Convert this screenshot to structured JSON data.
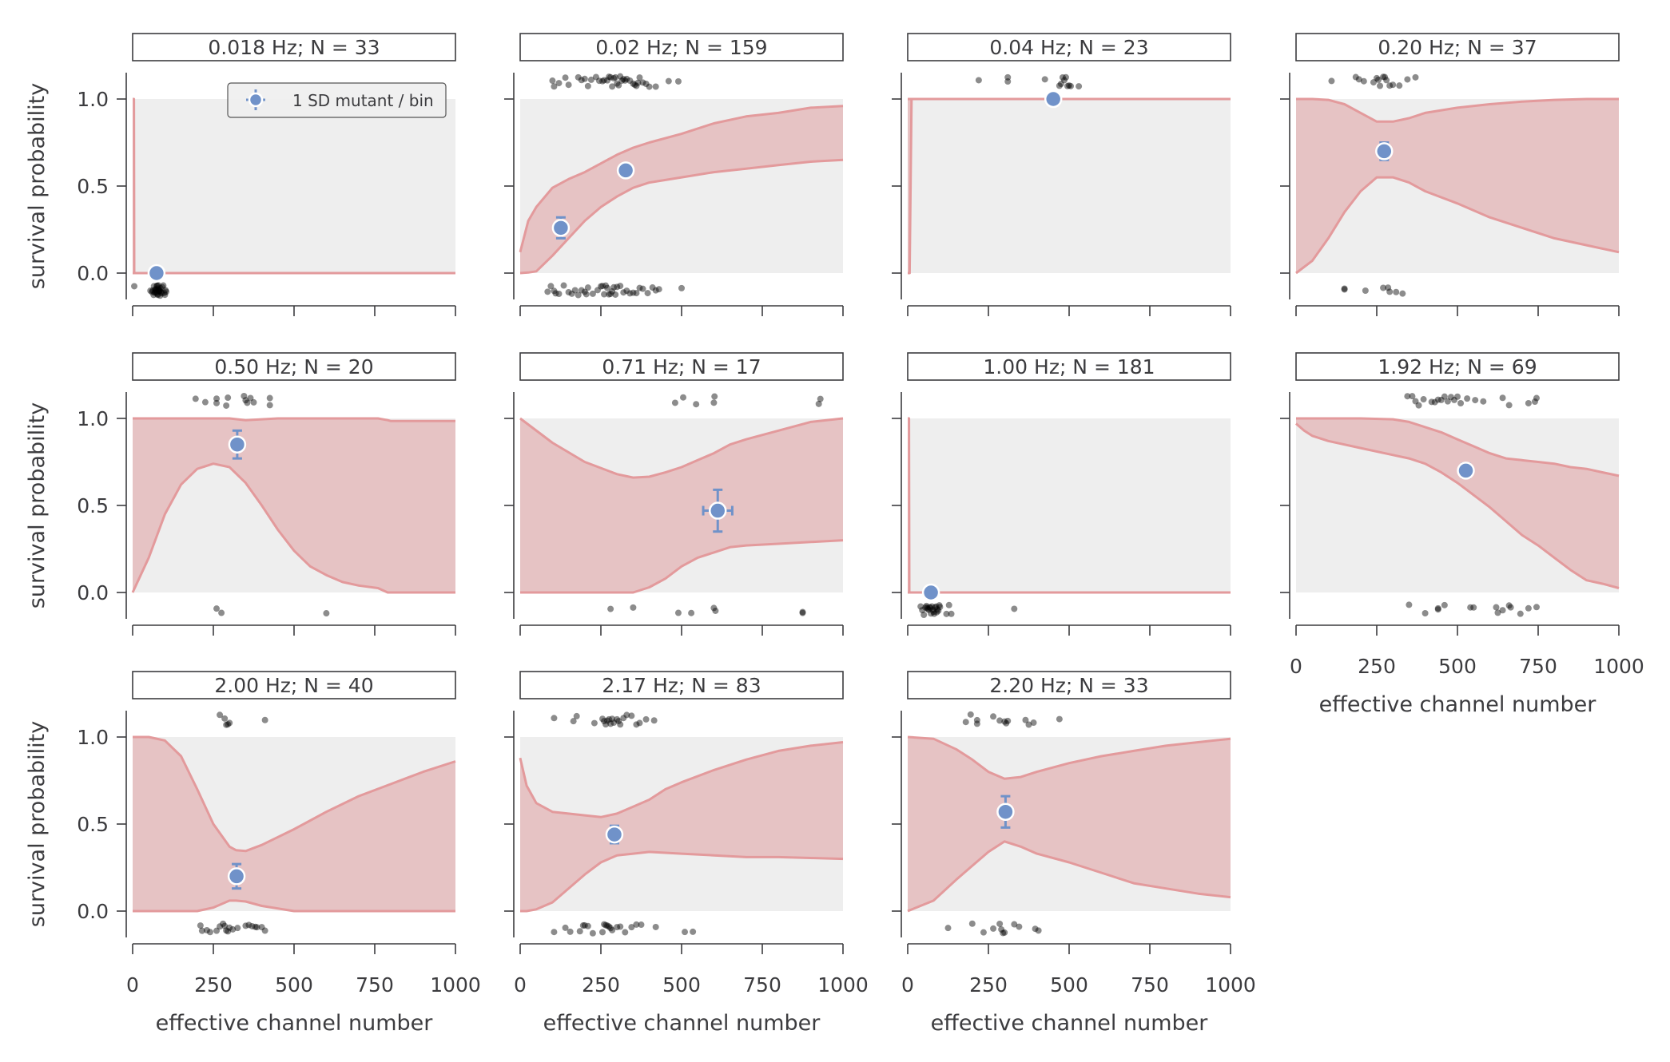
{
  "chart_data": {
    "type": "area",
    "description": "Small multiples: survival probability vs effective channel number, one panel per stimulation frequency. Shaded red band = model range; blue point = binned mutant mean with 1 SD error bars; black dots = individual observations (survived jittered above 1.0, died jittered below 0.0).",
    "xlabel": "effective channel number",
    "ylabel": "survival probability",
    "xlim": [
      0,
      1000
    ],
    "ylim": [
      -0.15,
      1.15
    ],
    "xticks": [
      0,
      250,
      500,
      750,
      1000
    ],
    "yticks": [
      0.0,
      0.5,
      1.0
    ],
    "xtick_labels": [
      "0",
      "250",
      "500",
      "750",
      "1000"
    ],
    "ytick_labels": [
      "0.0",
      "0.5",
      "1.0"
    ],
    "legend": {
      "label": "1 SD mutant / bin",
      "placement": "upper-right of first panel"
    },
    "colors": {
      "band_fill": "#e6c3c4",
      "band_line": "#e39a9c",
      "plot_bg": "#eeeeee",
      "point": "#7092c9",
      "observation": "#000000"
    },
    "panels": [
      {
        "title": "0.018 Hz; N = 33",
        "frequency_hz": 0.018,
        "n": 33,
        "band": {
          "x": [
            0,
            4,
            5,
            1000
          ],
          "upper": [
            1,
            1,
            0,
            0
          ],
          "lower": [
            0,
            0,
            0,
            0
          ]
        },
        "points": [
          {
            "x": 74,
            "y": 0.0,
            "y_err": 0,
            "x_err": 0
          }
        ],
        "survived_x": [],
        "died_x": [
          5,
          55,
          60,
          62,
          65,
          66,
          68,
          70,
          70,
          72,
          72,
          74,
          75,
          76,
          77,
          78,
          78,
          80,
          80,
          81,
          82,
          83,
          84,
          85,
          86,
          88,
          90,
          92,
          95,
          98,
          100,
          102,
          104
        ]
      },
      {
        "title": "0.02 Hz; N = 159",
        "frequency_hz": 0.02,
        "n": 159,
        "band": {
          "x": [
            0,
            25,
            50,
            100,
            150,
            200,
            250,
            300,
            350,
            400,
            500,
            600,
            700,
            800,
            900,
            1000
          ],
          "upper": [
            0.12,
            0.3,
            0.38,
            0.49,
            0.54,
            0.58,
            0.63,
            0.68,
            0.72,
            0.75,
            0.8,
            0.86,
            0.9,
            0.92,
            0.95,
            0.96
          ],
          "lower": [
            0.0,
            0.003,
            0.01,
            0.1,
            0.2,
            0.3,
            0.38,
            0.44,
            0.49,
            0.52,
            0.55,
            0.58,
            0.6,
            0.62,
            0.64,
            0.65
          ]
        },
        "points": [
          {
            "x": 126,
            "y": 0.26,
            "y_err": 0.06,
            "x_err": 0
          },
          {
            "x": 327,
            "y": 0.59,
            "y_err": 0.02,
            "x_err": 0
          }
        ],
        "survived_x": [
          100,
          105,
          120,
          140,
          150,
          180,
          190,
          200,
          210,
          220,
          235,
          245,
          255,
          260,
          270,
          275,
          280,
          285,
          290,
          295,
          300,
          305,
          310,
          315,
          320,
          325,
          330,
          340,
          350,
          355,
          360,
          365,
          370,
          380,
          390,
          400,
          420,
          460,
          490
        ],
        "died_x": [
          85,
          95,
          105,
          110,
          120,
          135,
          150,
          160,
          170,
          180,
          190,
          200,
          205,
          210,
          225,
          240,
          250,
          255,
          260,
          265,
          270,
          275,
          280,
          285,
          290,
          295,
          300,
          310,
          320,
          330,
          340,
          350,
          360,
          370,
          380,
          395,
          410,
          420,
          430,
          500
        ]
      },
      {
        "title": "0.04 Hz; N = 23",
        "frequency_hz": 0.04,
        "n": 23,
        "band": {
          "x": [
            0,
            6,
            12,
            1000
          ],
          "upper": [
            1,
            1,
            1,
            1
          ],
          "lower": [
            0,
            0,
            1,
            1
          ]
        },
        "points": [
          {
            "x": 451,
            "y": 1.0,
            "y_err": 0.005,
            "x_err": 0
          }
        ],
        "survived_x": [
          220,
          310,
          310,
          425,
          470,
          475,
          480,
          485,
          490,
          495,
          500,
          505,
          530
        ],
        "died_x": []
      },
      {
        "title": "0.20 Hz; N = 37",
        "frequency_hz": 0.2,
        "n": 37,
        "band": {
          "x": [
            0,
            50,
            100,
            150,
            200,
            250,
            300,
            350,
            400,
            500,
            600,
            700,
            800,
            900,
            1000
          ],
          "upper": [
            1.0,
            1.0,
            0.995,
            0.97,
            0.92,
            0.87,
            0.87,
            0.89,
            0.92,
            0.95,
            0.97,
            0.985,
            0.995,
            1.0,
            1.0
          ],
          "lower": [
            0.0,
            0.07,
            0.2,
            0.35,
            0.47,
            0.55,
            0.55,
            0.52,
            0.47,
            0.4,
            0.32,
            0.26,
            0.2,
            0.16,
            0.12
          ]
        },
        "points": [
          {
            "x": 273,
            "y": 0.7,
            "y_err": 0.05,
            "x_err": 0
          }
        ],
        "survived_x": [
          110,
          185,
          195,
          210,
          240,
          250,
          255,
          260,
          270,
          275,
          280,
          290,
          300,
          320,
          345,
          370
        ],
        "died_x": [
          150,
          150,
          215,
          270,
          285,
          290,
          310,
          330
        ]
      },
      {
        "title": "0.50 Hz; N = 20",
        "frequency_hz": 0.5,
        "n": 20,
        "band": {
          "x": [
            0,
            50,
            100,
            150,
            200,
            250,
            300,
            350,
            400,
            450,
            500,
            550,
            600,
            650,
            700,
            760,
            790,
            800,
            1000
          ],
          "upper": [
            1.0,
            1.0,
            1.0,
            1.0,
            1.0,
            1.0,
            1.0,
            0.99,
            0.995,
            1.0,
            1.0,
            1.0,
            1.0,
            1.0,
            1.0,
            1.0,
            0.99,
            0.985,
            0.985
          ],
          "lower": [
            0.0,
            0.2,
            0.45,
            0.62,
            0.71,
            0.74,
            0.72,
            0.63,
            0.5,
            0.36,
            0.24,
            0.15,
            0.1,
            0.06,
            0.04,
            0.025,
            0.0,
            0.0,
            0.0
          ]
        },
        "points": [
          {
            "x": 324,
            "y": 0.85,
            "y_err": 0.08,
            "x_err": 0
          }
        ],
        "survived_x": [
          195,
          225,
          260,
          260,
          290,
          295,
          345,
          350,
          355,
          365,
          375,
          425,
          425
        ],
        "died_x": [
          260,
          275,
          600
        ]
      },
      {
        "title": "0.71 Hz; N = 17",
        "frequency_hz": 0.71,
        "n": 17,
        "band": {
          "x": [
            0,
            100,
            200,
            300,
            350,
            400,
            450,
            500,
            550,
            600,
            650,
            700,
            800,
            900,
            1000
          ],
          "upper": [
            1.0,
            0.86,
            0.75,
            0.68,
            0.66,
            0.665,
            0.69,
            0.72,
            0.76,
            0.8,
            0.85,
            0.88,
            0.93,
            0.98,
            1.0
          ],
          "lower": [
            0.0,
            0.0,
            0.0,
            0.0,
            0.0,
            0.03,
            0.08,
            0.15,
            0.2,
            0.23,
            0.26,
            0.27,
            0.28,
            0.29,
            0.3
          ]
        },
        "points": [
          {
            "x": 612,
            "y": 0.47,
            "y_err": 0.12,
            "x_err": 45
          }
        ],
        "survived_x": [
          480,
          505,
          545,
          600,
          602,
          925,
          930
        ],
        "died_x": [
          280,
          350,
          490,
          530,
          600,
          605,
          875,
          875
        ]
      },
      {
        "title": "1.00 Hz; N = 181",
        "frequency_hz": 1.0,
        "n": 181,
        "band": {
          "x": [
            0,
            4,
            5,
            1000
          ],
          "upper": [
            1,
            1,
            0,
            0
          ],
          "lower": [
            0,
            0,
            0,
            0
          ]
        },
        "points": [
          {
            "x": 72,
            "y": 0.0,
            "y_err": 0,
            "x_err": 0
          }
        ],
        "survived_x": [],
        "died_x": [
          40,
          45,
          50,
          55,
          58,
          60,
          62,
          65,
          68,
          70,
          72,
          75,
          78,
          80,
          82,
          85,
          88,
          90,
          92,
          95,
          98,
          100,
          120,
          128,
          135,
          330
        ]
      },
      {
        "title": "1.92 Hz; N = 69",
        "frequency_hz": 1.92,
        "n": 69,
        "band": {
          "x": [
            0,
            25,
            50,
            100,
            200,
            300,
            350,
            400,
            450,
            500,
            550,
            600,
            650,
            700,
            750,
            800,
            850,
            900,
            950,
            1000
          ],
          "upper": [
            1.0,
            1.0,
            1.0,
            1.0,
            1.0,
            0.995,
            0.98,
            0.95,
            0.92,
            0.88,
            0.84,
            0.8,
            0.77,
            0.76,
            0.75,
            0.74,
            0.72,
            0.71,
            0.69,
            0.67
          ],
          "lower": [
            0.97,
            0.93,
            0.9,
            0.87,
            0.83,
            0.79,
            0.77,
            0.74,
            0.69,
            0.63,
            0.56,
            0.49,
            0.41,
            0.33,
            0.27,
            0.2,
            0.13,
            0.07,
            0.05,
            0.025
          ]
        },
        "points": [
          {
            "x": 526,
            "y": 0.7,
            "y_err": 0.04,
            "x_err": 0
          }
        ],
        "survived_x": [
          345,
          360,
          370,
          380,
          395,
          420,
          430,
          440,
          450,
          460,
          470,
          480,
          490,
          500,
          510,
          530,
          555,
          580,
          640,
          660,
          720,
          740,
          745
        ],
        "died_x": [
          350,
          400,
          440,
          440,
          460,
          540,
          550,
          620,
          625,
          640,
          660,
          665,
          695,
          720,
          745
        ]
      },
      {
        "title": "2.00 Hz; N = 40",
        "frequency_hz": 2.0,
        "n": 40,
        "band": {
          "x": [
            0,
            50,
            100,
            150,
            200,
            250,
            300,
            320,
            350,
            400,
            500,
            600,
            700,
            800,
            900,
            1000
          ],
          "upper": [
            1.0,
            1.0,
            0.98,
            0.89,
            0.7,
            0.5,
            0.37,
            0.35,
            0.345,
            0.38,
            0.47,
            0.57,
            0.66,
            0.73,
            0.8,
            0.86
          ],
          "lower": [
            0.0,
            0.0,
            0.0,
            0.0,
            0.0,
            0.02,
            0.06,
            0.06,
            0.055,
            0.03,
            0.0,
            0.0,
            0.0,
            0.0,
            0.0,
            0.0
          ]
        },
        "points": [
          {
            "x": 322,
            "y": 0.2,
            "y_err": 0.07,
            "x_err": 0
          }
        ],
        "survived_x": [
          270,
          285,
          290,
          295,
          300,
          410
        ],
        "died_x": [
          210,
          215,
          230,
          240,
          260,
          270,
          280,
          285,
          290,
          295,
          300,
          310,
          325,
          350,
          360,
          370,
          380,
          385,
          400,
          410
        ]
      },
      {
        "title": "2.17 Hz; N = 83",
        "frequency_hz": 2.17,
        "n": 83,
        "band": {
          "x": [
            0,
            20,
            50,
            100,
            200,
            250,
            300,
            350,
            400,
            450,
            500,
            600,
            700,
            800,
            900,
            1000
          ],
          "upper": [
            0.88,
            0.72,
            0.62,
            0.57,
            0.55,
            0.54,
            0.56,
            0.6,
            0.64,
            0.7,
            0.74,
            0.81,
            0.87,
            0.92,
            0.95,
            0.97
          ],
          "lower": [
            0.0,
            0.0,
            0.01,
            0.05,
            0.21,
            0.28,
            0.32,
            0.33,
            0.34,
            0.335,
            0.33,
            0.32,
            0.31,
            0.31,
            0.305,
            0.3
          ]
        },
        "points": [
          {
            "x": 292,
            "y": 0.44,
            "y_err": 0.05,
            "x_err": 0
          }
        ],
        "survived_x": [
          105,
          165,
          175,
          230,
          255,
          260,
          265,
          270,
          275,
          280,
          285,
          290,
          300,
          305,
          310,
          320,
          330,
          345,
          360,
          370,
          390,
          415
        ],
        "died_x": [
          105,
          140,
          155,
          185,
          195,
          200,
          210,
          225,
          255,
          260,
          265,
          270,
          275,
          280,
          285,
          300,
          310,
          325,
          345,
          360,
          375,
          420,
          510,
          535
        ]
      },
      {
        "title": "2.20 Hz; N = 33",
        "frequency_hz": 2.2,
        "n": 33,
        "band": {
          "x": [
            0,
            80,
            150,
            200,
            250,
            300,
            350,
            400,
            500,
            600,
            700,
            800,
            900,
            1000
          ],
          "upper": [
            1.0,
            0.99,
            0.93,
            0.87,
            0.8,
            0.76,
            0.77,
            0.8,
            0.85,
            0.89,
            0.92,
            0.95,
            0.97,
            0.99
          ],
          "lower": [
            0.0,
            0.06,
            0.18,
            0.26,
            0.34,
            0.4,
            0.37,
            0.33,
            0.28,
            0.22,
            0.16,
            0.13,
            0.1,
            0.08
          ]
        },
        "points": [
          {
            "x": 303,
            "y": 0.57,
            "y_err": 0.09,
            "x_err": 0
          }
        ],
        "survived_x": [
          180,
          195,
          215,
          215,
          265,
          285,
          300,
          305,
          310,
          365,
          375,
          390,
          470
        ],
        "died_x": [
          125,
          200,
          235,
          265,
          285,
          290,
          295,
          300,
          330,
          345,
          395,
          405
        ]
      }
    ]
  }
}
